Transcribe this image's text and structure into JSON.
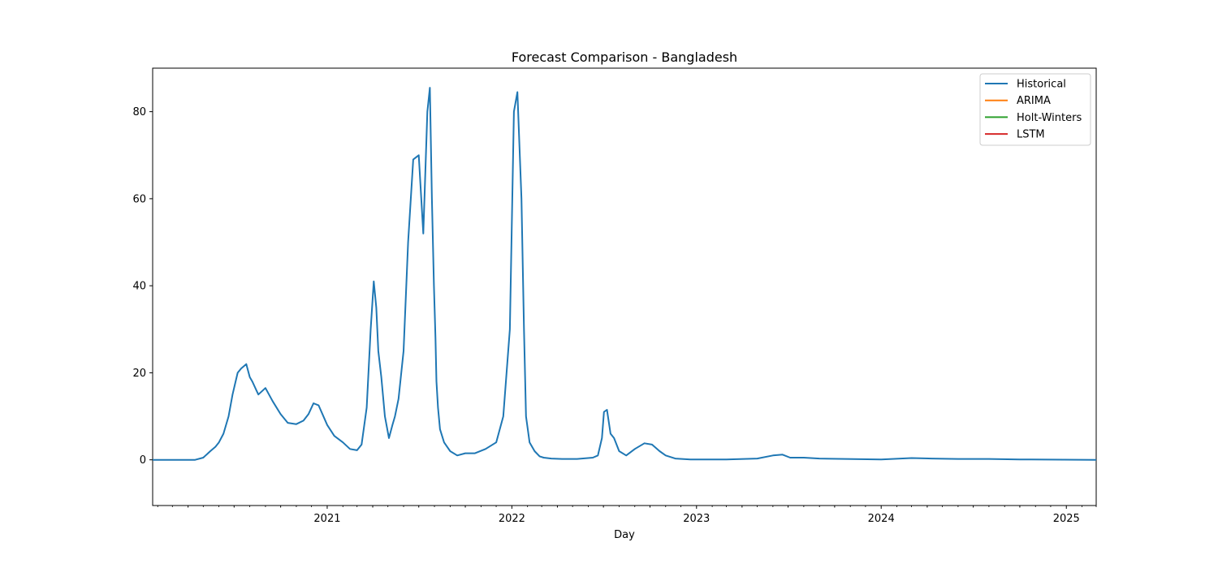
{
  "chart_data": {
    "type": "line",
    "title": "Forecast Comparison - Bangladesh",
    "xlabel": "Day",
    "ylabel": "",
    "xlim": [
      "2020-01-22",
      "2025-03-01"
    ],
    "ylim": [
      -10.5,
      90
    ],
    "grid": false,
    "legend_position": "top-right",
    "x_ticks": [
      "2021",
      "2022",
      "2023",
      "2024",
      "2025"
    ],
    "y_ticks": [
      0,
      20,
      40,
      60,
      80
    ],
    "series": [
      {
        "name": "Historical",
        "color": "#1f77b4",
        "x": [
          "2020-01-22",
          "2020-03-01",
          "2020-03-20",
          "2020-04-01",
          "2020-04-15",
          "2020-05-01",
          "2020-05-15",
          "2020-05-25",
          "2020-06-01",
          "2020-06-10",
          "2020-06-20",
          "2020-06-28",
          "2020-07-02",
          "2020-07-08",
          "2020-07-15",
          "2020-07-25",
          "2020-08-01",
          "2020-08-06",
          "2020-08-10",
          "2020-08-14",
          "2020-08-18",
          "2020-09-01",
          "2020-09-15",
          "2020-10-01",
          "2020-10-15",
          "2020-11-01",
          "2020-11-15",
          "2020-11-25",
          "2020-12-05",
          "2020-12-15",
          "2021-01-01",
          "2021-01-15",
          "2021-02-01",
          "2021-02-15",
          "2021-03-01",
          "2021-03-10",
          "2021-03-20",
          "2021-03-28",
          "2021-04-03",
          "2021-04-08",
          "2021-04-12",
          "2021-04-18",
          "2021-04-25",
          "2021-05-03",
          "2021-05-10",
          "2021-05-15",
          "2021-05-22",
          "2021-06-01",
          "2021-06-10",
          "2021-06-20",
          "2021-07-01",
          "2021-07-10",
          "2021-07-18",
          "2021-07-23",
          "2021-07-27",
          "2021-07-31",
          "2021-08-03",
          "2021-08-05",
          "2021-08-08",
          "2021-08-12",
          "2021-08-20",
          "2021-09-01",
          "2021-09-15",
          "2021-10-01",
          "2021-10-20",
          "2021-11-10",
          "2021-12-01",
          "2021-12-15",
          "2021-12-28",
          "2022-01-05",
          "2022-01-12",
          "2022-01-20",
          "2022-01-25",
          "2022-01-29",
          "2022-02-05",
          "2022-02-15",
          "2022-02-25",
          "2022-03-05",
          "2022-03-20",
          "2022-04-10",
          "2022-05-10",
          "2022-06-10",
          "2022-06-20",
          "2022-06-28",
          "2022-07-02",
          "2022-07-08",
          "2022-07-15",
          "2022-07-22",
          "2022-08-01",
          "2022-08-15",
          "2022-09-01",
          "2022-09-20",
          "2022-10-05",
          "2022-10-20",
          "2022-11-01",
          "2022-11-20",
          "2022-12-20",
          "2023-03-01",
          "2023-05-01",
          "2023-06-01",
          "2023-06-20",
          "2023-07-05",
          "2023-08-01",
          "2023-09-01",
          "2024-01-01",
          "2024-03-01",
          "2024-04-10",
          "2024-06-01",
          "2024-08-01",
          "2024-10-01",
          "2025-03-01"
        ],
        "values": [
          0,
          0,
          0,
          0,
          0,
          0.5,
          2.0,
          3.0,
          4.0,
          6.0,
          10.0,
          15.0,
          17.0,
          20.0,
          21.0,
          22.0,
          19.0,
          18.0,
          17.0,
          16.0,
          15.0,
          16.5,
          13.5,
          10.5,
          8.5,
          8.2,
          9.0,
          10.5,
          13.0,
          12.5,
          8.0,
          5.5,
          4.0,
          2.5,
          2.2,
          3.5,
          12.0,
          30.0,
          41.0,
          35.0,
          25.0,
          19.0,
          10.0,
          5.0,
          8.0,
          10.0,
          14.0,
          25.0,
          50.0,
          69.0,
          70.0,
          52.0,
          80.0,
          85.5,
          60.0,
          40.0,
          28.0,
          18.0,
          12.0,
          7.0,
          4.0,
          2.0,
          1.0,
          1.5,
          1.5,
          2.5,
          4.0,
          10.0,
          30.0,
          80.0,
          84.5,
          60.0,
          30.0,
          10.0,
          4.0,
          2.0,
          0.8,
          0.5,
          0.3,
          0.2,
          0.2,
          0.5,
          1.0,
          5.0,
          11.0,
          11.5,
          6.0,
          5.0,
          2.0,
          1.0,
          2.5,
          3.8,
          3.5,
          2.0,
          1.0,
          0.3,
          0.1,
          0.1,
          0.3,
          1.0,
          1.2,
          0.5,
          0.5,
          0.3,
          0.1,
          0.4,
          0.3,
          0.2,
          0.2,
          0.1,
          0
        ]
      },
      {
        "name": "ARIMA",
        "color": "#ff7f0e",
        "x": [],
        "values": []
      },
      {
        "name": "Holt-Winters",
        "color": "#2ca02c",
        "x": [],
        "values": []
      },
      {
        "name": "LSTM",
        "color": "#d62728",
        "x": [],
        "values": []
      }
    ]
  }
}
